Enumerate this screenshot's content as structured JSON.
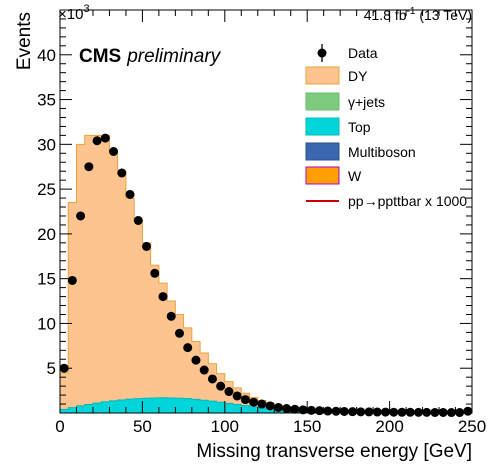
{
  "chart_data": {
    "type": "bar",
    "xlabel": "Missing transverse energy [GeV]",
    "ylabel": "Events",
    "y_exponent_label": "×10",
    "y_exponent_power": "3",
    "cms_label_bold": "CMS",
    "cms_label_italic": "preliminary",
    "lumi_text": "41.8 fb",
    "lumi_sup": "-1",
    "lumi_tail": " (13 TeV)",
    "xlim": [
      0,
      250
    ],
    "ylim": [
      0,
      45
    ],
    "x_ticks": [
      0,
      50,
      100,
      150,
      200,
      250
    ],
    "x_tick_labels": [
      "0",
      "50",
      "100",
      "150",
      "200",
      "250"
    ],
    "y_ticks": [
      5,
      10,
      15,
      20,
      25,
      30,
      35,
      40
    ],
    "y_tick_labels": [
      "5",
      "10",
      "15",
      "20",
      "25",
      "30",
      "35",
      "40"
    ],
    "y_units": "thousands of events",
    "bin_edges_start": 0,
    "bin_width": 5,
    "data": {
      "name": "Data",
      "values": [
        5.0,
        14.8,
        22.0,
        27.5,
        30.4,
        30.7,
        29.2,
        26.8,
        24.4,
        21.5,
        18.6,
        15.6,
        13.0,
        10.8,
        8.9,
        7.3,
        5.9,
        4.8,
        3.8,
        3.0,
        2.4,
        1.9,
        1.5,
        1.2,
        1.0,
        0.8,
        0.62,
        0.5,
        0.42,
        0.35,
        0.3,
        0.26,
        0.22,
        0.19,
        0.17,
        0.15,
        0.13,
        0.12,
        0.11,
        0.1,
        0.09,
        0.08,
        0.08,
        0.07,
        0.07,
        0.06,
        0.06,
        0.05,
        0.05,
        0.2
      ]
    },
    "series": [
      {
        "name": "DY",
        "color": "#fdc48f",
        "edge": "#e8a33e",
        "values": [
          4.5,
          23.5,
          30.0,
          31.0,
          31.0,
          31.0,
          29.0,
          27.0,
          24.0,
          21.5,
          19.0,
          16.5,
          14.5,
          12.5,
          11.0,
          9.5,
          8.0,
          6.7,
          5.5,
          4.4,
          3.5,
          2.8,
          2.2,
          1.75,
          1.4,
          1.1,
          0.88,
          0.72,
          0.6,
          0.5,
          0.42,
          0.36,
          0.3,
          0.26,
          0.22,
          0.19,
          0.17,
          0.15,
          0.13,
          0.12,
          0.11,
          0.1,
          0.09,
          0.08,
          0.08,
          0.07,
          0.07,
          0.06,
          0.06,
          0.05
        ]
      },
      {
        "name": "γ+jets",
        "color": "#7dcb7e",
        "edge": "#7dcb7e",
        "values": []
      },
      {
        "name": "Top",
        "color": "#00d6d9",
        "edge": "#00b8bb",
        "values": [
          0.4,
          0.6,
          0.8,
          0.95,
          1.1,
          1.25,
          1.35,
          1.45,
          1.55,
          1.6,
          1.65,
          1.68,
          1.7,
          1.68,
          1.65,
          1.6,
          1.52,
          1.43,
          1.32,
          1.2,
          1.08,
          0.95,
          0.82,
          0.7,
          0.58,
          0.48,
          0.4,
          0.33,
          0.27,
          0.22,
          0.18,
          0.15,
          0.12,
          0.1,
          0.08,
          0.07,
          0.06,
          0.05,
          0.04,
          0.04,
          0.03,
          0.03,
          0.02,
          0.02,
          0.02,
          0.02,
          0.01,
          0.01,
          0.01,
          0.01
        ]
      },
      {
        "name": "Multiboson",
        "color": "#3b66b0",
        "edge": "#2b4d88",
        "values": []
      },
      {
        "name": "W",
        "color": "#ff9e00",
        "edge": "#b000d0",
        "values": []
      }
    ],
    "signal": {
      "name": "pp→ppttbar x 1000",
      "color": "#cc0000"
    },
    "legend_position": "top-right"
  }
}
